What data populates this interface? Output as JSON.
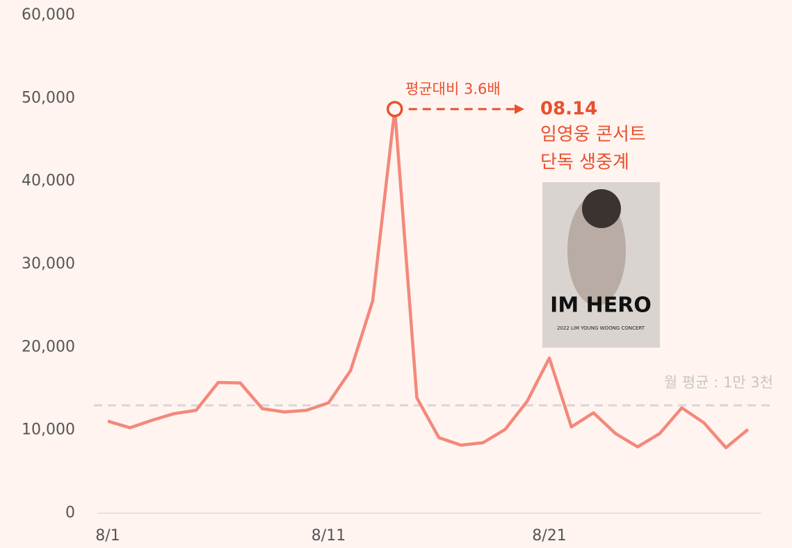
{
  "chart_data": {
    "type": "line",
    "categories": [
      "8/1",
      null,
      null,
      null,
      null,
      null,
      null,
      null,
      null,
      null,
      "8/11",
      null,
      null,
      null,
      null,
      null,
      null,
      null,
      null,
      null,
      "8/21",
      null,
      null,
      null,
      null,
      null,
      null,
      null,
      null,
      null
    ],
    "values": [
      11100,
      10300,
      11200,
      12000,
      12400,
      15750,
      15700,
      12600,
      12200,
      12400,
      13300,
      17200,
      25600,
      48700,
      13900,
      9100,
      8200,
      8500,
      10100,
      13500,
      18700,
      10400,
      12100,
      9600,
      8000,
      9600,
      12700,
      10900,
      7900,
      10100
    ],
    "color": "#f4887a",
    "ylim": [
      0,
      60000
    ],
    "yticks": [
      0,
      {
        "value": 10000,
        "label": "10,000"
      },
      {
        "value": 20000,
        "label": "20,000"
      },
      {
        "value": 30000,
        "label": "30,000"
      },
      {
        "value": 40000,
        "label": "40,000"
      },
      {
        "value": 50000,
        "label": "50,000"
      },
      {
        "value": 60000,
        "label": "60,000"
      }
    ],
    "average": {
      "value": 13000,
      "label": "월 평균 : 1만 3천",
      "color": "#d9d6d4"
    },
    "annotation": {
      "ratio_label": "평균대비 3.6배",
      "date": "08.14",
      "lines": [
        "임영웅 콘서트",
        "단독 생중계"
      ],
      "color": "#e8502e",
      "poster": {
        "title": "IM HERO",
        "subtitle": "2022 LIM YOUNG WOONG CONCERT"
      }
    }
  }
}
